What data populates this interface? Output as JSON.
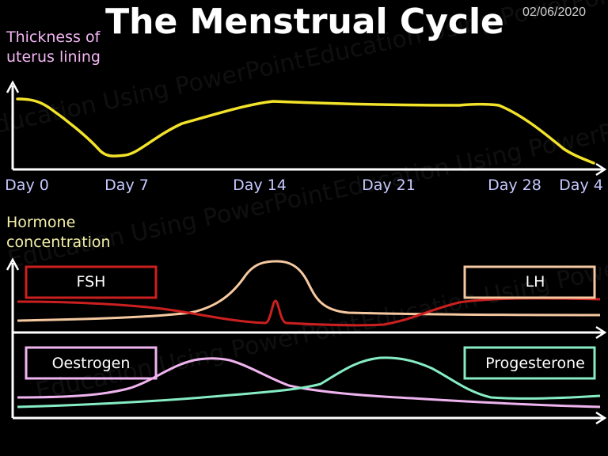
{
  "title": "The Menstrual Cycle",
  "date": "02/06/2020",
  "watermark": "Education Using PowerPoint",
  "uterus_chart": {
    "ylabel_lines": [
      "Thickness of",
      "uterus lining"
    ],
    "line_color": "#f2e22a",
    "day_labels": [
      "Day 0",
      "Day 7",
      "Day 14",
      "Day 21",
      "Day 28",
      "Day 4"
    ]
  },
  "hormone_chart": {
    "ylabel_lines": [
      "Hormone",
      "concentration"
    ],
    "legend": {
      "fsh": {
        "label": "FSH",
        "color": "#cc1f1f"
      },
      "lh": {
        "label": "LH",
        "color": "#f5c8a0"
      },
      "oestrogen": {
        "label": "Oestrogen",
        "color": "#efb4ef"
      },
      "progesterone": {
        "label": "Progesterone",
        "color": "#86ecc4"
      }
    }
  }
}
